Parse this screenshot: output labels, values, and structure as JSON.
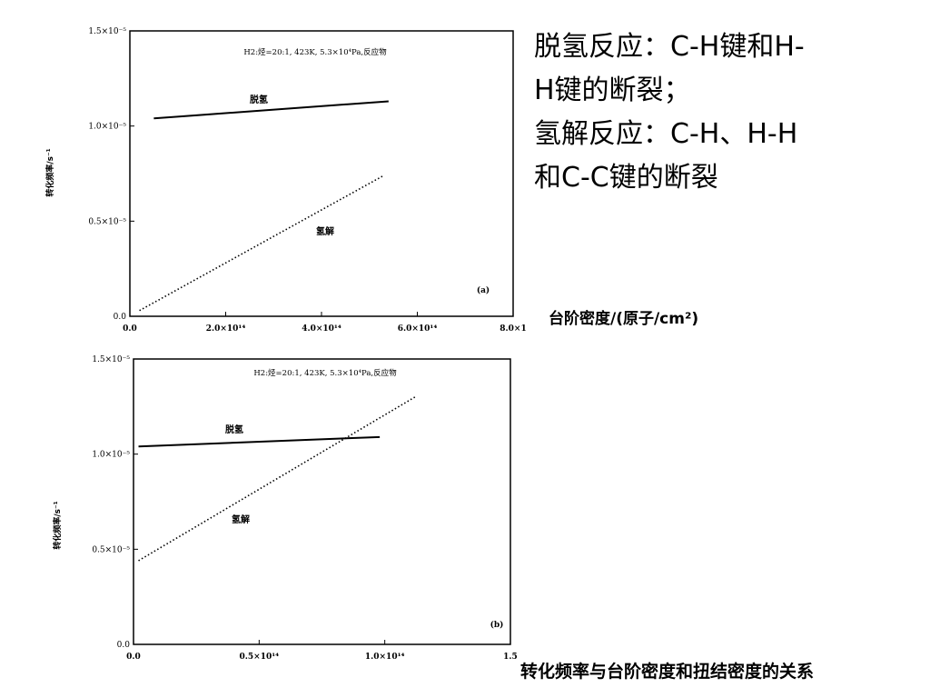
{
  "side_text": [
    "脱氢反应：C-H键和H-",
    "H键的断裂；",
    "氢解反应：C-H、H-H",
    "和C-C键的断裂"
  ],
  "caption": "转化频率与台阶密度和扭结密度的关系",
  "chart_data": [
    {
      "type": "line",
      "panel_label": "(a)",
      "annotation": "H2:烃=20:1, 423K, 5.3×10⁴Pa,反应物",
      "xlabel": "台阶密度/(原子/cm²)",
      "ylabel": "转化频率/s⁻¹",
      "xlim": [
        0,
        800000000000000.0
      ],
      "ylim": [
        0,
        1.5e-05
      ],
      "xticks": [
        "0.0",
        "2.0×10¹⁴",
        "4.0×10¹⁴",
        "6.0×10¹⁴",
        "8.0×1"
      ],
      "yticks": [
        "0.0",
        "0.5×10⁻⁵",
        "1.0×10⁻⁵",
        "1.5×10⁻⁵"
      ],
      "series": [
        {
          "name": "脱氢",
          "style": "solid",
          "x": [
            50000000000000.0,
            540000000000000.0
          ],
          "y": [
            1.04e-05,
            1.13e-05
          ],
          "color": "#000000"
        },
        {
          "name": "氢解",
          "style": "dotted",
          "x": [
            20000000000000.0,
            530000000000000.0
          ],
          "y": [
            3e-07,
            7.4e-06
          ],
          "color": "#000000"
        }
      ]
    },
    {
      "type": "line",
      "panel_label": "(b)",
      "annotation": "H2:烃=20:1, 423K, 5.3×10⁴Pa,反应物",
      "xlabel": "",
      "ylabel": "转化频率/s⁻¹",
      "xlim": [
        0,
        150000000000000.0
      ],
      "ylim": [
        0,
        1.5e-05
      ],
      "xticks": [
        "0.0",
        "0.5×10¹⁴",
        "1.0×10¹⁴",
        "1.5"
      ],
      "yticks": [
        "0.0",
        "0.5×10⁻⁵",
        "1.0×10⁻⁵",
        "1.5×10⁻⁵"
      ],
      "series": [
        {
          "name": "脱氢",
          "style": "solid",
          "x": [
            2000000000000.0,
            98000000000000.0
          ],
          "y": [
            1.04e-05,
            1.09e-05
          ],
          "color": "#000000"
        },
        {
          "name": "氢解",
          "style": "dotted",
          "x": [
            2000000000000.0,
            112000000000000.0
          ],
          "y": [
            4.4e-06,
            1.3e-05
          ],
          "color": "#000000"
        }
      ]
    }
  ]
}
